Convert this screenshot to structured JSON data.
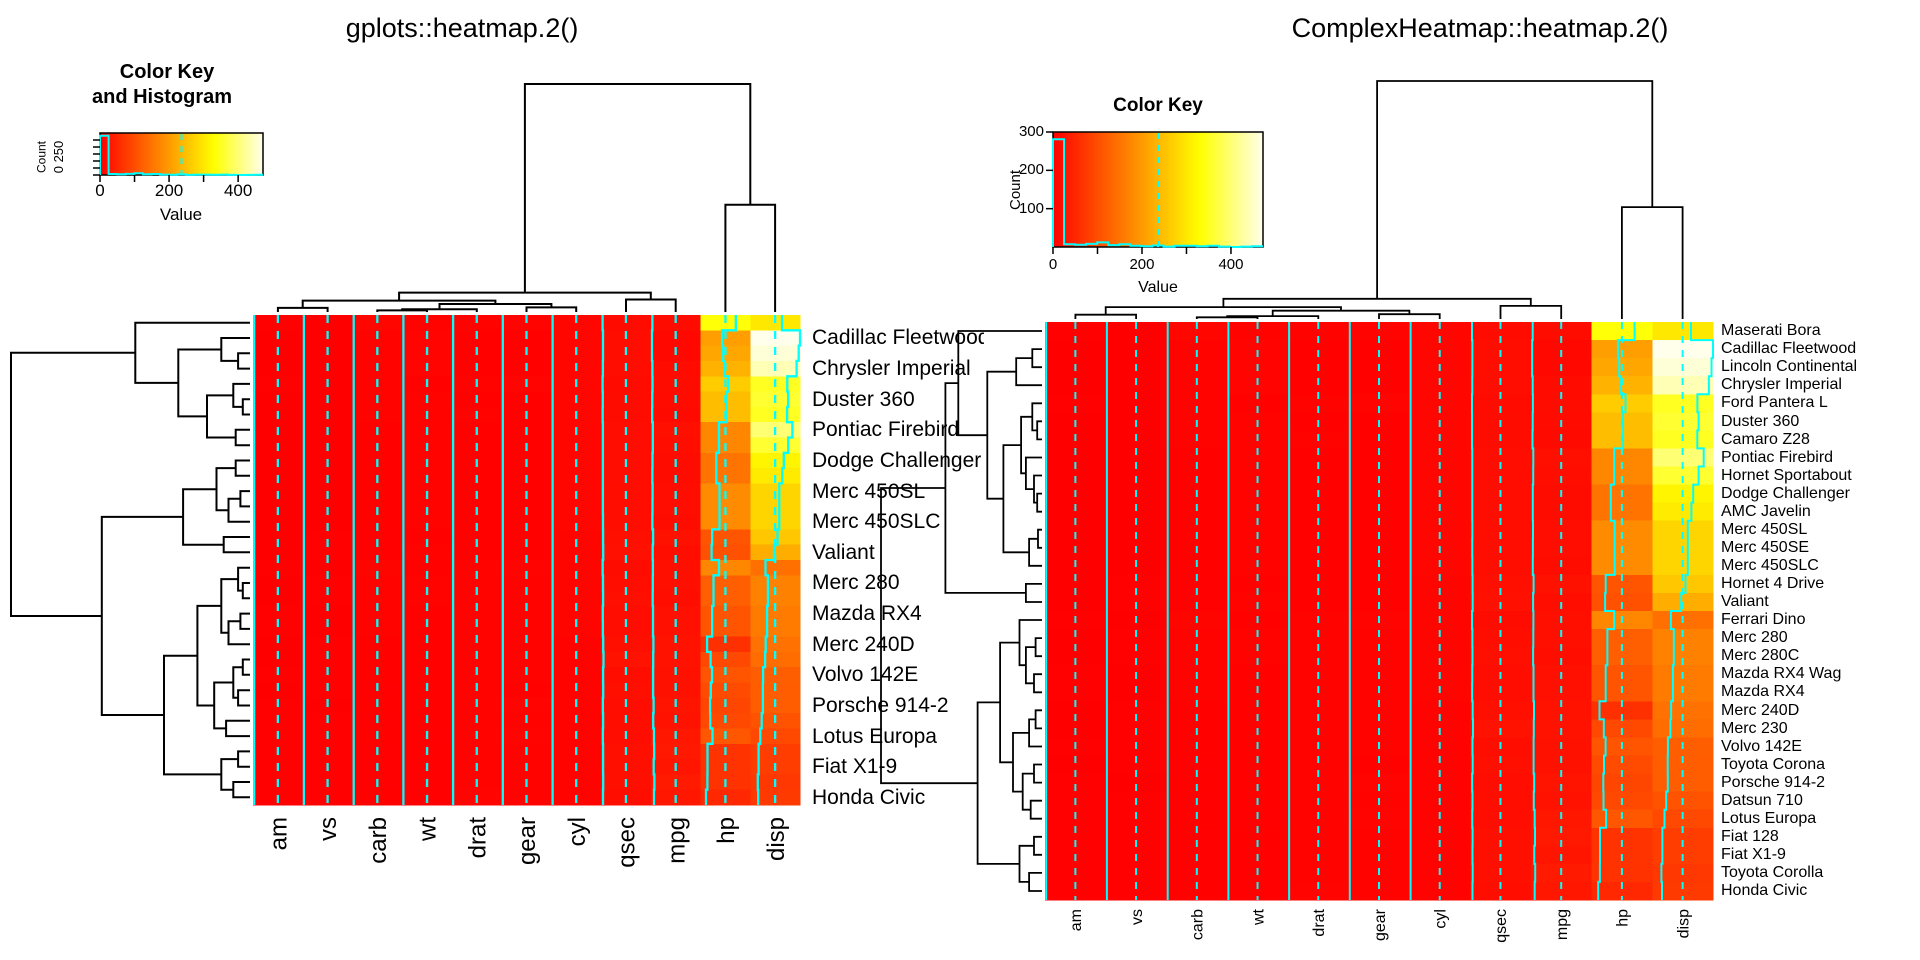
{
  "left_panel": {
    "title": "gplots::heatmap.2()",
    "color_key": {
      "title_line1": "Color Key",
      "title_line2": "and Histogram",
      "count_axis_label": "Count",
      "count_tick_text": "0 250",
      "value_axis_label": "Value",
      "value_tick_labels": [
        "0",
        "200",
        "400"
      ]
    },
    "row_labels": [
      "Cadillac Fleetwood",
      "Chrysler Imperial",
      "Duster 360",
      "Pontiac Firebird",
      "Dodge Challenger",
      "Merc 450SL",
      "Merc 450SLC",
      "Valiant",
      "Merc 280",
      "Mazda RX4",
      "Merc 240D",
      "Volvo 142E",
      "Porsche 914-2",
      "Lotus Europa",
      "Fiat X1-9",
      "Honda Civic"
    ],
    "col_labels": [
      "am",
      "vs",
      "carb",
      "wt",
      "drat",
      "gear",
      "cyl",
      "qsec",
      "mpg",
      "hp",
      "disp"
    ]
  },
  "right_panel": {
    "title": "ComplexHeatmap::heatmap.2()",
    "color_key": {
      "title": "Color Key",
      "count_axis_label": "Count",
      "count_tick_labels": [
        "100",
        "200",
        "300"
      ],
      "value_axis_label": "Value",
      "value_tick_labels": [
        "0",
        "200",
        "400"
      ]
    },
    "row_labels": [
      "Maserati Bora",
      "Cadillac Fleetwood",
      "Lincoln Continental",
      "Chrysler Imperial",
      "Ford Pantera L",
      "Duster 360",
      "Camaro Z28",
      "Pontiac Firebird",
      "Hornet Sportabout",
      "Dodge Challenger",
      "AMC Javelin",
      "Merc 450SL",
      "Merc 450SE",
      "Merc 450SLC",
      "Hornet 4 Drive",
      "Valiant",
      "Ferrari Dino",
      "Merc 280",
      "Merc 280C",
      "Mazda RX4 Wag",
      "Mazda RX4",
      "Merc 240D",
      "Merc 230",
      "Volvo 142E",
      "Toyota Corona",
      "Porsche 914-2",
      "Datsun 710",
      "Lotus Europa",
      "Fiat 128",
      "Fiat X1-9",
      "Toyota Corolla",
      "Honda Civic"
    ],
    "col_labels": [
      "am",
      "vs",
      "carb",
      "wt",
      "drat",
      "gear",
      "cyl",
      "qsec",
      "mpg",
      "hp",
      "disp"
    ]
  },
  "colors": {
    "trace_cyan": "#00ffff",
    "dendrogram_black": "#000000",
    "cell_low": "#ff0000",
    "cell_mid": "#ffff00",
    "cell_high": "#ffffeb",
    "background": "#ffffff"
  },
  "chart_data": {
    "type": "heatmap",
    "columns": [
      "am",
      "vs",
      "carb",
      "wt",
      "drat",
      "gear",
      "cyl",
      "qsec",
      "mpg",
      "hp",
      "disp"
    ],
    "value_range": [
      0,
      472
    ],
    "key_dashed_value": 236,
    "key_histogram": {
      "bin_width": 25,
      "range": [
        0,
        475
      ],
      "counts": [
        281,
        7,
        6,
        8,
        12,
        5,
        7,
        3,
        2,
        4,
        1,
        3,
        3,
        2,
        3,
        1,
        0,
        1,
        2
      ]
    },
    "rows": [
      {
        "name": "Maserati Bora",
        "values": [
          1,
          0,
          8,
          3.57,
          3.54,
          5,
          8,
          14.6,
          15,
          335,
          301
        ]
      },
      {
        "name": "Cadillac Fleetwood",
        "values": [
          0,
          0,
          4,
          5.25,
          2.93,
          3,
          8,
          17.98,
          10.4,
          205,
          472
        ]
      },
      {
        "name": "Lincoln Continental",
        "values": [
          0,
          0,
          4,
          5.424,
          3,
          3,
          8,
          17.82,
          10.4,
          215,
          460
        ]
      },
      {
        "name": "Chrysler Imperial",
        "values": [
          0,
          0,
          4,
          5.345,
          3.23,
          3,
          8,
          17.42,
          14.7,
          230,
          440
        ]
      },
      {
        "name": "Ford Pantera L",
        "values": [
          1,
          0,
          4,
          3.17,
          4.22,
          5,
          8,
          14.5,
          15.8,
          264,
          351
        ]
      },
      {
        "name": "Duster 360",
        "values": [
          0,
          0,
          4,
          3.57,
          3.21,
          3,
          8,
          15.84,
          14.3,
          245,
          360
        ]
      },
      {
        "name": "Camaro Z28",
        "values": [
          0,
          0,
          4,
          3.84,
          3.73,
          3,
          8,
          15.41,
          13.3,
          245,
          350
        ]
      },
      {
        "name": "Pontiac Firebird",
        "values": [
          0,
          0,
          2,
          3.845,
          3.08,
          3,
          8,
          17.05,
          19.2,
          175,
          400
        ]
      },
      {
        "name": "Hornet Sportabout",
        "values": [
          0,
          0,
          2,
          3.44,
          3.15,
          3,
          8,
          17.02,
          18.7,
          175,
          360
        ]
      },
      {
        "name": "Dodge Challenger",
        "values": [
          0,
          0,
          2,
          3.52,
          2.76,
          3,
          8,
          16.87,
          15.5,
          150,
          318
        ]
      },
      {
        "name": "AMC Javelin",
        "values": [
          0,
          0,
          2,
          3.435,
          3.15,
          3,
          8,
          17.3,
          15.2,
          150,
          304
        ]
      },
      {
        "name": "Merc 450SL",
        "values": [
          0,
          0,
          3,
          3.73,
          3.07,
          3,
          8,
          17.6,
          17.3,
          180,
          275.8
        ]
      },
      {
        "name": "Merc 450SE",
        "values": [
          0,
          0,
          3,
          4.07,
          3.07,
          3,
          8,
          17.4,
          16.4,
          180,
          275.8
        ]
      },
      {
        "name": "Merc 450SLC",
        "values": [
          0,
          0,
          3,
          3.78,
          3.07,
          3,
          8,
          18,
          15.2,
          180,
          275.8
        ]
      },
      {
        "name": "Hornet 4 Drive",
        "values": [
          0,
          1,
          1,
          3.215,
          3.08,
          3,
          6,
          19.44,
          21.4,
          110,
          258
        ]
      },
      {
        "name": "Valiant",
        "values": [
          0,
          1,
          1,
          3.46,
          2.76,
          3,
          6,
          20.22,
          18.1,
          105,
          225
        ]
      },
      {
        "name": "Ferrari Dino",
        "values": [
          1,
          0,
          6,
          2.77,
          3.62,
          5,
          6,
          15.5,
          19.7,
          175,
          145
        ]
      },
      {
        "name": "Merc 280",
        "values": [
          0,
          1,
          4,
          3.44,
          3.92,
          4,
          6,
          18.3,
          19.2,
          123,
          167.6
        ]
      },
      {
        "name": "Merc 280C",
        "values": [
          0,
          1,
          4,
          3.44,
          3.92,
          4,
          6,
          18.9,
          17.8,
          123,
          167.6
        ]
      },
      {
        "name": "Mazda RX4 Wag",
        "values": [
          1,
          0,
          4,
          2.875,
          3.9,
          4,
          6,
          17.02,
          21,
          110,
          160
        ]
      },
      {
        "name": "Mazda RX4",
        "values": [
          1,
          0,
          4,
          2.62,
          3.9,
          4,
          6,
          16.46,
          21,
          110,
          160
        ]
      },
      {
        "name": "Merc 240D",
        "values": [
          0,
          1,
          2,
          3.19,
          3.69,
          4,
          4,
          20,
          24.4,
          62,
          146.7
        ]
      },
      {
        "name": "Merc 230",
        "values": [
          0,
          1,
          2,
          3.15,
          3.92,
          4,
          4,
          22.9,
          22.8,
          95,
          140.8
        ]
      },
      {
        "name": "Volvo 142E",
        "values": [
          1,
          1,
          2,
          2.78,
          4.11,
          4,
          4,
          18.6,
          21.4,
          109,
          121.4
        ]
      },
      {
        "name": "Toyota Corona",
        "values": [
          0,
          1,
          1,
          2.465,
          3.7,
          3,
          4,
          20.01,
          21.5,
          97,
          120.1
        ]
      },
      {
        "name": "Porsche 914-2",
        "values": [
          1,
          0,
          2,
          2.14,
          4.43,
          5,
          4,
          16.7,
          26,
          91,
          120.3
        ]
      },
      {
        "name": "Datsun 710",
        "values": [
          1,
          1,
          1,
          2.32,
          3.85,
          4,
          4,
          18.61,
          22.8,
          93,
          108
        ]
      },
      {
        "name": "Lotus Europa",
        "values": [
          1,
          1,
          2,
          1.513,
          3.77,
          5,
          4,
          16.9,
          30.4,
          113,
          95.1
        ]
      },
      {
        "name": "Fiat 128",
        "values": [
          1,
          1,
          1,
          2.2,
          4.08,
          4,
          4,
          19.47,
          32.4,
          66,
          78.7
        ]
      },
      {
        "name": "Fiat X1-9",
        "values": [
          1,
          1,
          1,
          1.935,
          4.08,
          4,
          4,
          18.9,
          27.3,
          66,
          79
        ]
      },
      {
        "name": "Toyota Corolla",
        "values": [
          1,
          1,
          1,
          1.835,
          4.22,
          4,
          4,
          19.9,
          33.9,
          65,
          71.1
        ]
      },
      {
        "name": "Honda Civic",
        "values": [
          1,
          1,
          2,
          1.615,
          4.93,
          4,
          4,
          18.52,
          30.4,
          52,
          75.7
        ]
      }
    ],
    "left_row_order": [
      "Maserati Bora",
      "Cadillac Fleetwood",
      "Lincoln Continental",
      "Chrysler Imperial",
      "Ford Pantera L",
      "Duster 360",
      "Camaro Z28",
      "Pontiac Firebird",
      "Hornet Sportabout",
      "Dodge Challenger",
      "AMC Javelin",
      "Merc 450SL",
      "Merc 450SE",
      "Merc 450SLC",
      "Hornet 4 Drive",
      "Valiant",
      "Ferrari Dino",
      "Merc 280",
      "Merc 280C",
      "Mazda RX4",
      "Mazda RX4 Wag",
      "Merc 240D",
      "Merc 230",
      "Volvo 142E",
      "Toyota Corona",
      "Porsche 914-2",
      "Datsun 710",
      "Lotus Europa",
      "Fiat 128",
      "Fiat X1-9",
      "Toyota Corolla",
      "Honda Civic"
    ]
  }
}
